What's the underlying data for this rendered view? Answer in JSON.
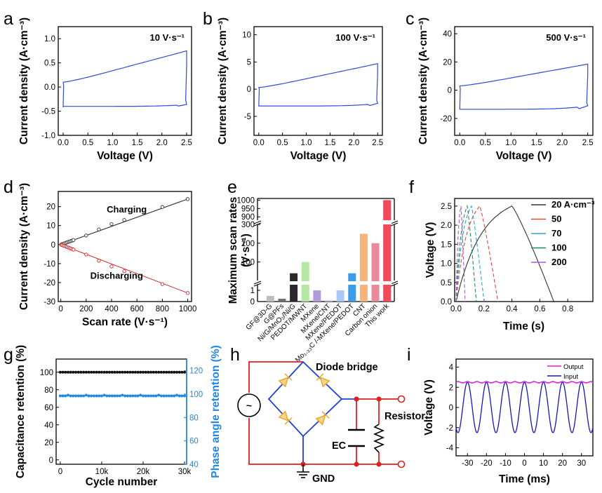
{
  "panel_labels": {
    "a": "a",
    "b": "b",
    "c": "c",
    "d": "d",
    "e": "e",
    "f": "f",
    "g": "g",
    "h": "h",
    "i": "i"
  },
  "colors": {
    "cv": "#2f4bd8",
    "charging": "#222222",
    "discharging": "#d62728",
    "blue_axis": "#1e88e5",
    "circuit_red": "#e01f1f",
    "circuit_blue": "#1f3fd8",
    "diode": "#f0c15a",
    "output": "#e020e0",
    "input": "#1414c8"
  },
  "chart_data": [
    {
      "id": "a",
      "type": "line",
      "title": "",
      "annotation": "10 V·s⁻¹",
      "xlabel": "Voltage (V)",
      "ylabel": "Current density (A·cm⁻³)",
      "xlim": [
        -0.1,
        2.6
      ],
      "ylim": [
        -1.0,
        1.25
      ],
      "xticks": [
        0.0,
        0.5,
        1.0,
        1.5,
        2.0,
        2.5
      ],
      "yticks": [
        -1.0,
        -0.5,
        0.0,
        0.5,
        1.0
      ],
      "cv": {
        "v0": 0.0,
        "v1": 2.5,
        "top_start": 0.1,
        "top_end": 0.75,
        "bottom_start": -0.42,
        "bottom_end": -0.36,
        "bottom_mid": -0.4
      }
    },
    {
      "id": "b",
      "type": "line",
      "title": "",
      "annotation": "100 V·s⁻¹",
      "xlabel": "Voltage (V)",
      "ylabel": "Current density (A·cm⁻³)",
      "xlim": [
        -0.1,
        2.6
      ],
      "ylim": [
        -8.5,
        11.5
      ],
      "xticks": [
        0.0,
        0.5,
        1.0,
        1.5,
        2.0,
        2.5
      ],
      "yticks": [
        -5,
        0,
        5,
        10
      ],
      "cv": {
        "v0": 0.0,
        "v1": 2.5,
        "top_start": 0.3,
        "top_end": 4.7,
        "bottom_start": -3.2,
        "bottom_end": -2.6,
        "bottom_mid": -3.1
      }
    },
    {
      "id": "c",
      "type": "line",
      "title": "",
      "annotation": "500 V·s⁻¹",
      "xlabel": "Voltage (V)",
      "ylabel": "Current density (A·cm⁻³)",
      "xlim": [
        -0.1,
        2.6
      ],
      "ylim": [
        -32,
        45
      ],
      "xticks": [
        0.0,
        0.5,
        1.0,
        1.5,
        2.0,
        2.5
      ],
      "yticks": [
        -20,
        0,
        20,
        40
      ],
      "cv": {
        "v0": 0.0,
        "v1": 2.5,
        "top_start": 3.0,
        "top_end": 18.5,
        "bottom_start": -13.5,
        "bottom_end": -11,
        "bottom_mid": -13.5
      }
    },
    {
      "id": "d",
      "type": "scatter",
      "xlabel": "Scan rate (V·s⁻¹)",
      "ylabel": "Current density (A·cm⁻³)",
      "xlim": [
        -20,
        1030
      ],
      "ylim": [
        -30,
        28
      ],
      "xticks": [
        0,
        200,
        400,
        600,
        800,
        1000
      ],
      "yticks": [
        -30,
        -20,
        -10,
        0,
        10,
        20
      ],
      "series": [
        {
          "name": "Charging",
          "x": [
            5,
            10,
            20,
            30,
            40,
            50,
            60,
            70,
            80,
            90,
            100,
            200,
            300,
            400,
            500,
            800,
            1000
          ],
          "y": [
            0.12,
            0.24,
            0.48,
            0.72,
            0.96,
            1.2,
            1.44,
            1.68,
            1.92,
            2.16,
            2.4,
            4.8,
            8.0,
            10.8,
            13.0,
            19.8,
            24.0
          ]
        },
        {
          "name": "Discharging",
          "x": [
            5,
            10,
            20,
            30,
            40,
            50,
            60,
            70,
            80,
            90,
            100,
            200,
            300,
            400,
            500,
            800,
            1000
          ],
          "y": [
            -0.13,
            -0.26,
            -0.52,
            -0.78,
            -1.04,
            -1.3,
            -1.56,
            -1.82,
            -2.08,
            -2.34,
            -2.6,
            -5.2,
            -8.5,
            -11.5,
            -14.0,
            -20.8,
            -25.5
          ]
        }
      ],
      "fit": {
        "charging_slope": 0.024,
        "discharging_slope": -0.0255
      },
      "labels": {
        "charging": "Charging",
        "discharging": "Discharging"
      }
    },
    {
      "id": "e",
      "type": "bar",
      "ylabel_line1": "Maximum scan rates",
      "ylabel_line2": "(V·s⁻¹)",
      "categories": [
        "GF@3D-G",
        "G@PFs",
        "Ni/G/MnO₂/Ni/G",
        "PEDOT/MWNT",
        "MXene",
        "MXene/CNT",
        "MXene/PEDOT",
        "Mo₁.₃₃C /-MXene/PEDOT",
        "CNT",
        "Carbon onion",
        "This work"
      ],
      "values": [
        0.5,
        0.25,
        40,
        100,
        1.0,
        0.1,
        1.0,
        40,
        250,
        200,
        1000
      ],
      "bar_colors": [
        "#bdbdbd",
        "#707070",
        "#2a2a2a",
        "#b5e6a3",
        "#b19cd9",
        "#c7b4e8",
        "#a9c8f5",
        "#3d9be9",
        "#f7b37a",
        "#e88a9a",
        "#f04b5b"
      ],
      "segments": [
        {
          "range": [
            0,
            1.5
          ],
          "ticks": [
            0,
            1
          ]
        },
        {
          "range": [
            1.5,
            300
          ],
          "ticks": [
            100,
            200,
            300
          ]
        },
        {
          "range": [
            880,
            1010
          ],
          "ticks": [
            900,
            950,
            1000
          ]
        }
      ]
    },
    {
      "id": "f",
      "type": "line",
      "xlabel": "Time (s)",
      "ylabel": "Voltage (V)",
      "xlim": [
        -0.01,
        0.98
      ],
      "ylim": [
        0,
        2.7
      ],
      "xticks": [
        0.0,
        0.2,
        0.4,
        0.6,
        0.8
      ],
      "yticks": [
        0.0,
        0.5,
        1.0,
        1.5,
        2.0,
        2.5
      ],
      "series": [
        {
          "name": "20 A·cm⁻³",
          "peak_time": 0.4,
          "end_time": 0.7,
          "color": "#333333",
          "dash": "none"
        },
        {
          "name": "50",
          "peak_time": 0.17,
          "end_time": 0.3,
          "color": "#e4463d",
          "dash": "5,3"
        },
        {
          "name": "70",
          "peak_time": 0.11,
          "end_time": 0.2,
          "color": "#29a3d6",
          "dash": "5,3"
        },
        {
          "name": "100",
          "peak_time": 0.08,
          "end_time": 0.145,
          "color": "#1e8c66",
          "dash": "5,3"
        },
        {
          "name": "200",
          "peak_time": 0.035,
          "end_time": 0.065,
          "color": "#a65cc8",
          "dash": "5,3"
        }
      ],
      "vmax": 2.5
    },
    {
      "id": "g",
      "type": "scatter",
      "xlabel": "Cycle number",
      "ylabel": "Capacitance retention (%)",
      "ylabel_right": "Phase angle retention (%)",
      "xlim": [
        -1000,
        30500
      ],
      "xticks": [
        0,
        10000,
        20000,
        30000
      ],
      "xtick_labels": [
        "0",
        "10k",
        "20k",
        "30k"
      ],
      "ylim": [
        -5,
        115
      ],
      "yticks": [
        0,
        20,
        40,
        60,
        80,
        100
      ],
      "ylim_right": [
        40,
        130
      ],
      "yticks_right": [
        40,
        60,
        80,
        100,
        120
      ],
      "series": [
        {
          "name": "Capacitance retention",
          "value": 100
        },
        {
          "name": "Phase angle retention",
          "value": 98.5
        }
      ]
    },
    {
      "id": "i",
      "type": "line",
      "xlabel": "Time (ms)",
      "ylabel": "Voltage (V)",
      "xlim": [
        -36,
        36
      ],
      "ylim": [
        -4.8,
        4.8
      ],
      "xticks": [
        -30,
        -20,
        -10,
        0,
        10,
        20,
        30
      ],
      "yticks": [
        -4,
        -2,
        0,
        2,
        4
      ],
      "series": [
        {
          "name": "Output",
          "level": 2.5
        },
        {
          "name": "Input",
          "amplitude": 2.5,
          "period_ms": 10
        }
      ]
    }
  ],
  "circuit": {
    "title": "Diode bridge",
    "resistor": "Resistor",
    "ec": "EC",
    "gnd": "GND",
    "source_symbol": "~"
  }
}
